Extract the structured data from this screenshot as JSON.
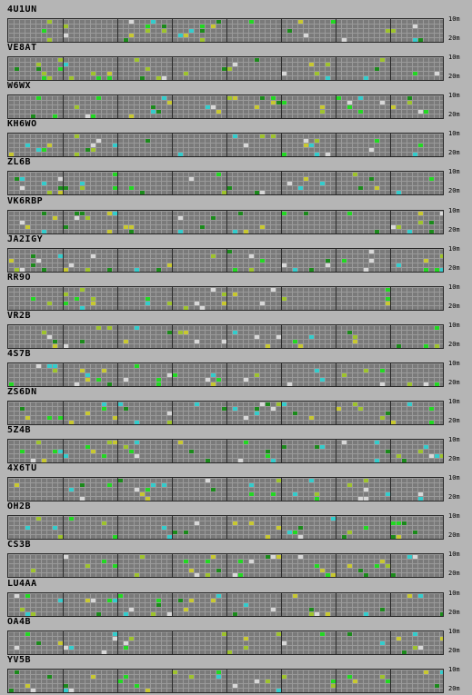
{
  "band_labels": {
    "top": "10m",
    "bottom": "20m"
  },
  "colors": {
    "grid_bg": "#7a7a7a",
    "activity_levels": [
      "#1b8a1b",
      "#22d822",
      "#9ec32c",
      "#c8c830",
      "#33cccc",
      "#d8d8d8"
    ]
  },
  "stations": [
    {
      "callsign": "4U1UN"
    },
    {
      "callsign": "VE8AT"
    },
    {
      "callsign": "W6WX"
    },
    {
      "callsign": "KH6WO"
    },
    {
      "callsign": "ZL6B"
    },
    {
      "callsign": "VK6RBP"
    },
    {
      "callsign": "JA2IGY"
    },
    {
      "callsign": "RR9O"
    },
    {
      "callsign": "VR2B"
    },
    {
      "callsign": "4S7B"
    },
    {
      "callsign": "ZS6DN"
    },
    {
      "callsign": "5Z4B"
    },
    {
      "callsign": "4X6TU"
    },
    {
      "callsign": "OH2B"
    },
    {
      "callsign": "CS3B"
    },
    {
      "callsign": "LU4AA"
    },
    {
      "callsign": "OA4B"
    },
    {
      "callsign": "YV5B"
    }
  ]
}
